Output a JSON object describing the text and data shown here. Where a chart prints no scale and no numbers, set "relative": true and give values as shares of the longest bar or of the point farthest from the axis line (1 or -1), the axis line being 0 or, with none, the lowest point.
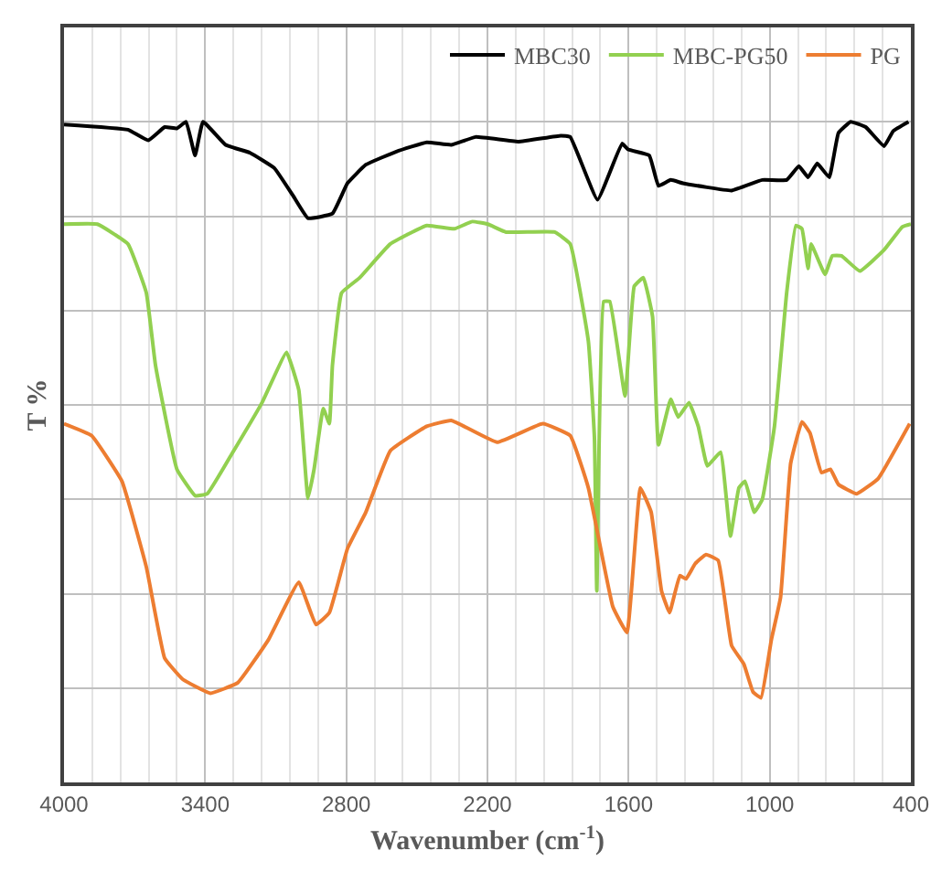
{
  "chart_data": {
    "type": "line",
    "relative": true,
    "xlabel": "Wavenumber (cm$^{-1}$)",
    "ylabel": "T %",
    "xlim": [
      4000,
      400
    ],
    "xticks": [
      4000,
      3400,
      2800,
      2200,
      1600,
      1000,
      400
    ],
    "grid": true,
    "legend": "top right",
    "marker": "none",
    "line_style": "solid",
    "series": [
      {
        "name": "MBC30",
        "color": "#000000",
        "x": [
          4000,
          3728,
          3642,
          3572,
          3520,
          3481,
          3443,
          3409,
          3313,
          3209,
          3106,
          3028,
          2963,
          2859,
          2795,
          2717,
          2587,
          2458,
          2354,
          2250,
          2069,
          1888,
          1848,
          1732,
          1628,
          1602,
          1512,
          1473,
          1421,
          1369,
          1162,
          1032,
          928,
          876,
          837,
          798,
          747,
          708,
          656,
          592,
          514,
          475,
          410
        ],
        "values": [
          0.996,
          0.988,
          0.972,
          0.992,
          0.99,
          1,
          0.949,
          1,
          0.965,
          0.953,
          0.93,
          0.889,
          0.854,
          0.861,
          0.907,
          0.935,
          0.955,
          0.969,
          0.965,
          0.977,
          0.97,
          0.979,
          0.977,
          0.882,
          0.967,
          0.958,
          0.949,
          0.903,
          0.912,
          0.907,
          0.896,
          0.912,
          0.912,
          0.933,
          0.916,
          0.937,
          0.916,
          0.983,
          1,
          0.992,
          0.963,
          0.986,
          1
        ]
      },
      {
        "name": "MBC-PG50",
        "color": "#92d050",
        "x": [
          4000,
          3858,
          3728,
          3650,
          3611,
          3520,
          3442,
          3391,
          3287,
          3158,
          3054,
          3002,
          2963,
          2937,
          2898,
          2872,
          2859,
          2820,
          2743,
          2613,
          2458,
          2341,
          2264,
          2198,
          2121,
          1914,
          1848,
          1771,
          1745,
          1735,
          1706,
          1680,
          1615,
          1576,
          1537,
          1498,
          1473,
          1421,
          1389,
          1343,
          1304,
          1265,
          1209,
          1167,
          1131,
          1105,
          1066,
          1032,
          980,
          928,
          889,
          863,
          837,
          824,
          765,
          734,
          695,
          617,
          514,
          436,
          400
        ],
        "values": [
          0.845,
          0.845,
          0.815,
          0.741,
          0.631,
          0.474,
          0.434,
          0.437,
          0.497,
          0.575,
          0.651,
          0.594,
          0.43,
          0.474,
          0.566,
          0.543,
          0.631,
          0.741,
          0.764,
          0.815,
          0.843,
          0.838,
          0.849,
          0.845,
          0.833,
          0.833,
          0.815,
          0.668,
          0.52,
          0.29,
          0.728,
          0.728,
          0.585,
          0.751,
          0.764,
          0.705,
          0.511,
          0.58,
          0.553,
          0.575,
          0.539,
          0.479,
          0.5,
          0.373,
          0.446,
          0.456,
          0.409,
          0.428,
          0.539,
          0.741,
          0.843,
          0.838,
          0.778,
          0.815,
          0.769,
          0.797,
          0.797,
          0.774,
          0.806,
          0.841,
          0.845
        ]
      },
      {
        "name": "PG",
        "color": "#ed7d31",
        "x": [
          4000,
          3883,
          3754,
          3650,
          3572,
          3495,
          3378,
          3261,
          3131,
          3002,
          2929,
          2872,
          2795,
          2717,
          2613,
          2458,
          2354,
          2159,
          1965,
          1848,
          1771,
          1667,
          1607,
          1550,
          1504,
          1460,
          1426,
          1382,
          1356,
          1317,
          1271,
          1219,
          1162,
          1110,
          1071,
          1037,
          993,
          954,
          911,
          863,
          829,
          780,
          742,
          708,
          630,
          539,
          405
        ],
        "values": [
          0.543,
          0.525,
          0.456,
          0.326,
          0.188,
          0.156,
          0.135,
          0.151,
          0.216,
          0.303,
          0.239,
          0.257,
          0.354,
          0.409,
          0.502,
          0.539,
          0.548,
          0.515,
          0.543,
          0.525,
          0.446,
          0.266,
          0.227,
          0.446,
          0.409,
          0.29,
          0.257,
          0.313,
          0.308,
          0.331,
          0.345,
          0.336,
          0.207,
          0.179,
          0.137,
          0.128,
          0.216,
          0.28,
          0.483,
          0.546,
          0.529,
          0.469,
          0.474,
          0.451,
          0.437,
          0.46,
          0.543
        ]
      }
    ]
  }
}
